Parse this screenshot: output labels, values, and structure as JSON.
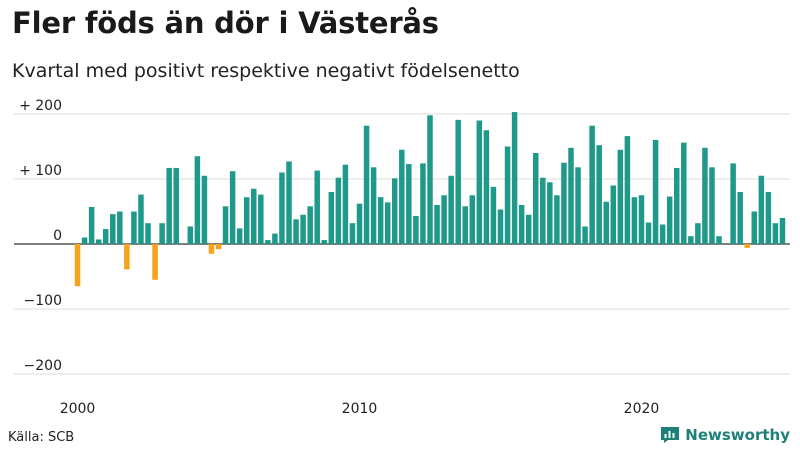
{
  "header": {
    "title": "Fler föds än dör i Västerås",
    "subtitle": "Kvartal med positivt respektive negativt födelsenetto"
  },
  "footer": {
    "source": "Källa: SCB",
    "brand": "Newsworthy",
    "brand_icon": "newsworthy-logo-icon"
  },
  "colors": {
    "positive": "#1f9a8a",
    "negative": "#f5a31a",
    "grid": "#dddddd",
    "zero_line": "#333333",
    "brand": "#1f7f79"
  },
  "chart_data": {
    "type": "bar",
    "title": "Fler föds än dör i Västerås",
    "subtitle": "Kvartal med positivt respektive negativt födelsenetto",
    "x_start": "2000 Q1",
    "x_ticks": [
      "2000",
      "2010",
      "2020"
    ],
    "y_ticks": [
      200,
      100,
      0,
      -100,
      -200
    ],
    "y_tick_labels": [
      "+ 200",
      "+ 100",
      "0",
      "−100",
      "−200"
    ],
    "ylim": [
      -200,
      200
    ],
    "grid": true,
    "values": [
      -65,
      10,
      57,
      7,
      23,
      46,
      50,
      -39,
      50,
      76,
      32,
      -55,
      32,
      117,
      117,
      0,
      27,
      135,
      105,
      -15,
      -8,
      58,
      112,
      24,
      72,
      85,
      76,
      6,
      16,
      110,
      127,
      38,
      45,
      58,
      113,
      6,
      80,
      102,
      122,
      32,
      62,
      182,
      118,
      72,
      64,
      101,
      145,
      123,
      43,
      124,
      198,
      60,
      75,
      105,
      191,
      58,
      75,
      190,
      175,
      88,
      53,
      150,
      203,
      60,
      45,
      140,
      102,
      95,
      75,
      125,
      148,
      118,
      27,
      182,
      152,
      65,
      90,
      145,
      166,
      72,
      75,
      33,
      160,
      30,
      73,
      117,
      156,
      12,
      32,
      148,
      118,
      12,
      0,
      124,
      80,
      -6,
      50,
      105,
      80,
      32,
      40
    ]
  }
}
